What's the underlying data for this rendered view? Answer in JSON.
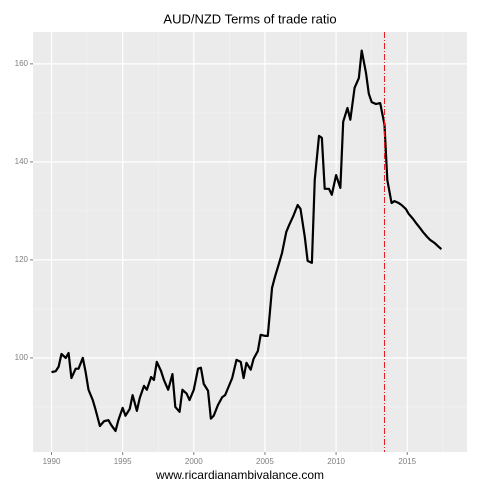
{
  "chart_data": {
    "type": "line",
    "title": "AUD/NZD Terms of trade ratio",
    "x_label": "www.ricardianambivalance.com",
    "x": [
      1990.0,
      1990.3,
      1990.5,
      1990.7,
      1991.0,
      1991.2,
      1991.4,
      1991.7,
      1991.9,
      1992.2,
      1992.4,
      1992.6,
      1992.9,
      1993.1,
      1993.4,
      1993.7,
      1994.0,
      1994.2,
      1994.5,
      1994.7,
      1995.0,
      1995.2,
      1995.5,
      1995.7,
      1996.0,
      1996.2,
      1996.5,
      1996.7,
      1997.0,
      1997.2,
      1997.4,
      1997.7,
      1997.9,
      1998.2,
      1998.5,
      1998.7,
      1999.0,
      1999.2,
      1999.5,
      1999.7,
      2000.0,
      2000.3,
      2000.5,
      2000.7,
      2001.0,
      2001.2,
      2001.4,
      2001.7,
      2002.0,
      2002.2,
      2002.5,
      2002.7,
      2003.0,
      2003.3,
      2003.5,
      2003.7,
      2004.0,
      2004.2,
      2004.5,
      2004.7,
      2005.0,
      2005.2,
      2005.5,
      2005.7,
      2006.0,
      2006.2,
      2006.5,
      2006.7,
      2007.0,
      2007.3,
      2007.5,
      2007.8,
      2008.0,
      2008.3,
      2008.5,
      2008.8,
      2009.0,
      2009.2,
      2009.5,
      2009.7,
      2010.0,
      2010.3,
      2010.5,
      2010.8,
      2011.0,
      2011.3,
      2011.6,
      2011.8,
      2012.1,
      2012.3,
      2012.5,
      2012.8,
      2013.1,
      2013.4,
      2013.6,
      2013.9,
      2014.1,
      2014.4,
      2014.6,
      2014.9,
      2015.1,
      2015.4,
      2015.6,
      2015.9,
      2016.1,
      2016.4,
      2016.6,
      2016.9,
      2017.2,
      2017.4
    ],
    "series": [
      {
        "color": "#000000",
        "values": [
          97.1,
          97.3,
          98.2,
          100.8,
          100,
          101,
          95.9,
          97.8,
          97.8,
          100,
          97.1,
          93.5,
          91.4,
          89.4,
          86.1,
          87.1,
          87.3,
          86.3,
          85.1,
          87.3,
          89.8,
          88.2,
          89.6,
          92.4,
          89.2,
          91.8,
          94.3,
          93.5,
          96.1,
          95.5,
          99.2,
          97.3,
          95.5,
          93.5,
          96.7,
          90,
          89,
          93.5,
          92.7,
          91.4,
          93.5,
          97.8,
          98,
          94.7,
          93.3,
          87.6,
          88.2,
          90.4,
          92,
          92.4,
          94.5,
          95.9,
          99.6,
          99.2,
          95.9,
          99,
          97.6,
          99.8,
          101.4,
          104.7,
          104.5,
          104.5,
          114.3,
          116.5,
          119.4,
          121.4,
          125.7,
          127.1,
          129,
          131.2,
          130.4,
          124.7,
          119.8,
          119.4,
          136.3,
          145.3,
          144.9,
          134.5,
          134.5,
          133.3,
          137.3,
          134.7,
          148.2,
          151,
          148.6,
          155.1,
          157.1,
          162.7,
          158.2,
          153.9,
          152.2,
          151.8,
          152,
          147.6,
          136.3,
          131.6,
          132,
          131.6,
          131.2,
          130.4,
          129.4,
          128.4,
          127.6,
          126.5,
          125.7,
          124.7,
          124.1,
          123.5,
          122.7,
          122.2
        ]
      }
    ],
    "vline": 2013.4,
    "vline_color": "#e41a1c",
    "xlim": [
      1988.7,
      2019.2
    ],
    "xticks": [
      1990,
      1995,
      2000,
      2005,
      2010,
      2015
    ],
    "ylim": [
      80.8,
      166.5
    ],
    "yticks": [
      100,
      120,
      140,
      160
    ],
    "xminor": [
      1992.5,
      1997.5,
      2002.5,
      2007.5,
      2012.5,
      2017.5
    ],
    "yminor": [
      90,
      110,
      130,
      150
    ],
    "grid": true
  }
}
